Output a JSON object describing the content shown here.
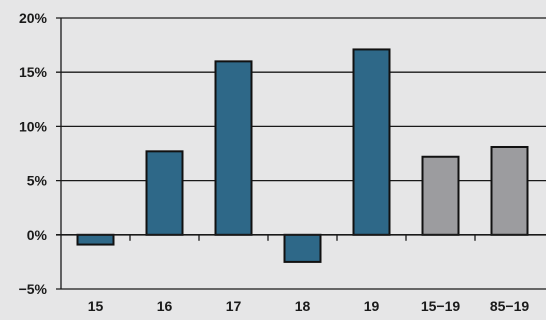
{
  "chart_data": {
    "type": "bar",
    "categories": [
      "15",
      "16",
      "17",
      "18",
      "19",
      "15−19",
      "85−19"
    ],
    "values": [
      -0.9,
      7.7,
      16.0,
      -2.5,
      17.1,
      7.2,
      8.1
    ],
    "bar_colors": [
      "#2e6888",
      "#2e6888",
      "#2e6888",
      "#2e6888",
      "#2e6888",
      "#9c9c9f",
      "#9c9c9f"
    ],
    "y_ticks": [
      -5,
      0,
      5,
      10,
      15,
      20
    ],
    "y_tick_labels": [
      "−5%",
      "0%",
      "5%",
      "10%",
      "15%",
      "20%"
    ],
    "ylim": [
      -5,
      20
    ],
    "title": "",
    "xlabel": "",
    "ylabel": "",
    "grid": true,
    "legend": "none"
  },
  "colors": {
    "background": "#e6e6e7",
    "primary_bar": "#2e6888",
    "secondary_bar": "#9c9c9f"
  }
}
